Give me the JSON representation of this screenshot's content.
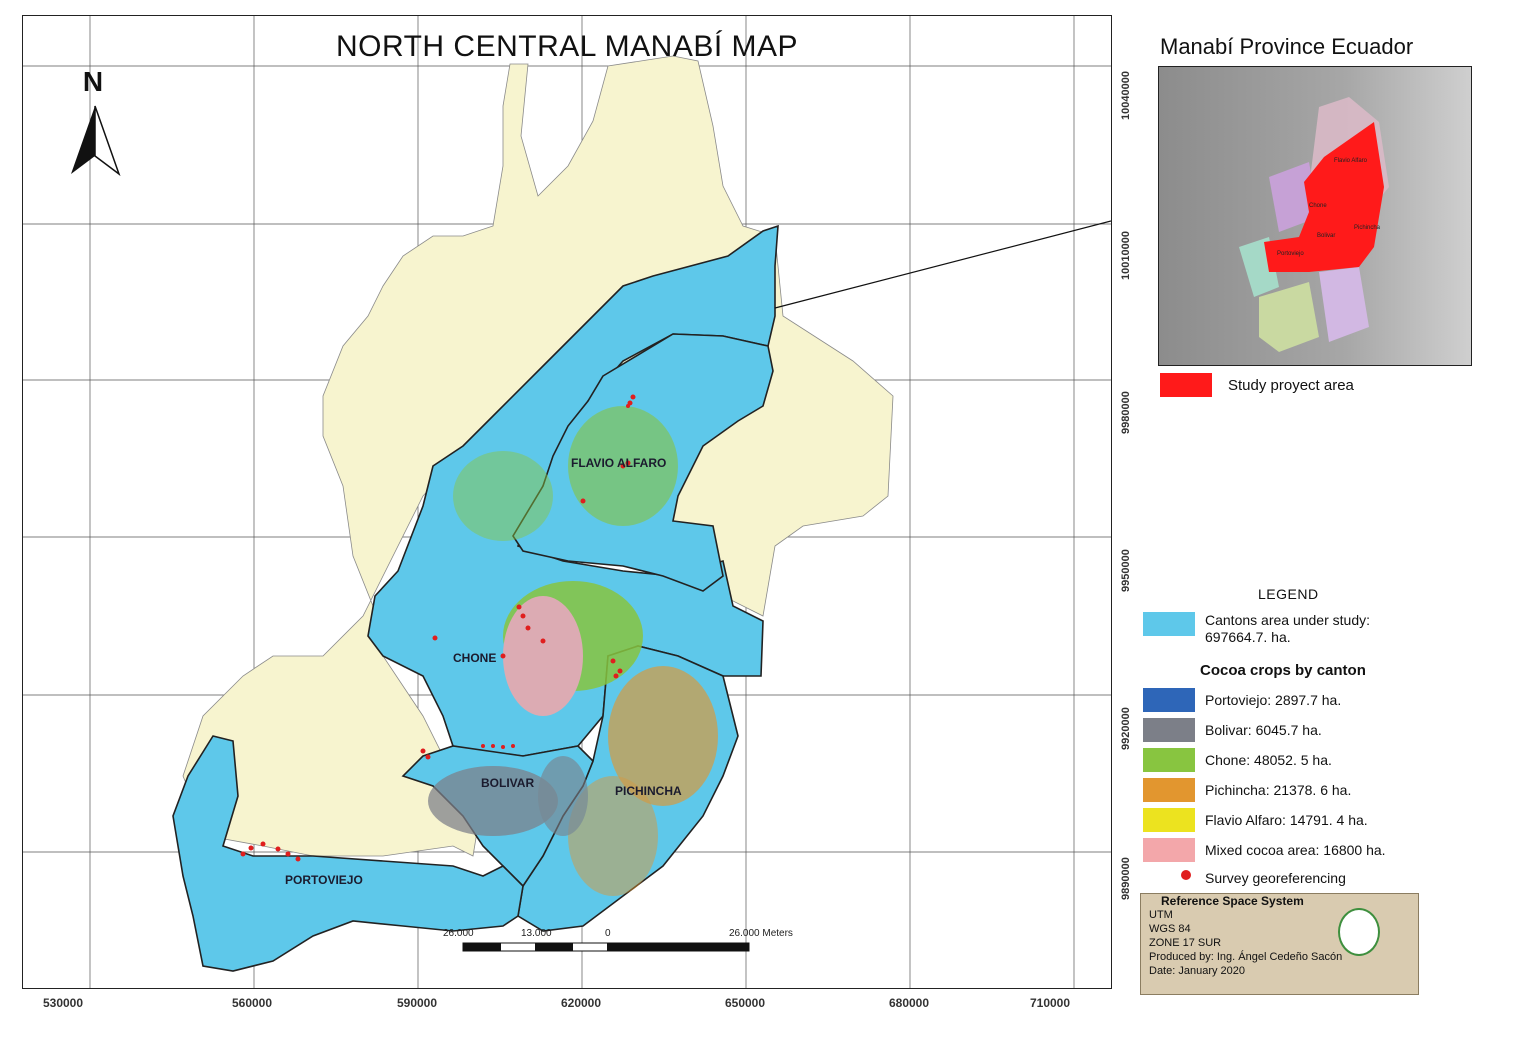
{
  "map": {
    "title": "NORTH CENTRAL MANABÍ MAP",
    "north_label": "N",
    "x_ticks": [
      "530000",
      "560000",
      "590000",
      "620000",
      "650000",
      "680000",
      "710000"
    ],
    "y_ticks": [
      "10040000",
      "10010000",
      "9980000",
      "9950000",
      "9920000",
      "9890000"
    ],
    "cantons": [
      {
        "name": "FLAVIO ALFARO"
      },
      {
        "name": "CHONE"
      },
      {
        "name": "BOLIVAR"
      },
      {
        "name": "PICHINCHA"
      },
      {
        "name": "PORTOVIEJO"
      }
    ],
    "scale_bar": {
      "left": "26.000",
      "mid": "13.000",
      "zero": "0",
      "right": "26.000 Meters"
    },
    "colors": {
      "background_land": "#f7f4cf",
      "study_area": "#5ec8ea",
      "cocoa_green": "#7fc241",
      "cocoa_orange": "#d8923a",
      "cocoa_pink": "#f0a2a6",
      "cocoa_gray": "#7a7f8a",
      "survey_point": "#e01e1e"
    }
  },
  "inset": {
    "title": "Manabí Province Ecuador",
    "legend_label": "Study proyect area",
    "labels": [
      "Flavio Alfaro",
      "Chone",
      "Bolivar",
      "Pichincha",
      "Portoviejo"
    ]
  },
  "legend": {
    "title": "LEGEND",
    "study_area_line1": "Cantons area under study:",
    "study_area_line2": "697664.7. ha.",
    "subtitle": "Cocoa crops by canton",
    "items": [
      {
        "label": "Portoviejo: 2897.7 ha.",
        "color": "#2e66b8"
      },
      {
        "label": "Bolivar: 6045.7 ha.",
        "color": "#7c7f88"
      },
      {
        "label": "Chone: 48052. 5 ha.",
        "color": "#88c540"
      },
      {
        "label": "Pichincha: 21378. 6 ha.",
        "color": "#e2962f"
      },
      {
        "label": "Flavio Alfaro: 14791. 4 ha.",
        "color": "#ece31f"
      },
      {
        "label": "Mixed cocoa area: 16800 ha.",
        "color": "#f3a7aa"
      }
    ],
    "survey_label": "Survey georeferencing"
  },
  "reference": {
    "title": "Reference Space System",
    "lines": [
      "UTM",
      "WGS 84",
      "ZONE 17 SUR",
      "Produced by: Ing. Ángel Cedeño Sacón",
      "Date: January 2020"
    ]
  }
}
